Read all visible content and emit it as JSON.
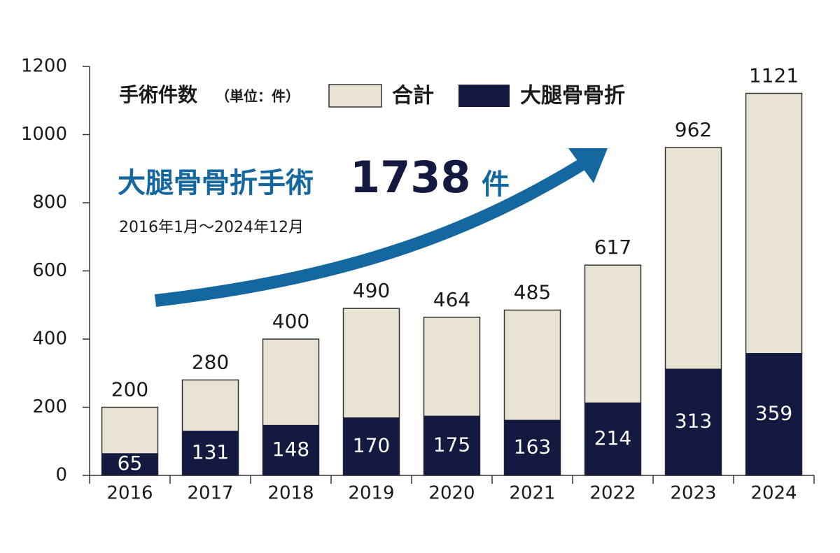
{
  "chart_data": {
    "type": "bar",
    "legend_title": "手術件数",
    "legend_unit": "（単位：件）",
    "annotation": {
      "label": "大腿骨骨折手術",
      "value": 1738,
      "unit": "件",
      "period": "2016年1月〜2024年12月"
    },
    "categories": [
      "2016",
      "2017",
      "2018",
      "2019",
      "2020",
      "2021",
      "2022",
      "2023",
      "2024"
    ],
    "series": [
      {
        "name": "合計",
        "color": "#e8e3d2",
        "values": [
          200,
          280,
          400,
          490,
          464,
          485,
          617,
          962,
          1121
        ]
      },
      {
        "name": "大腿骨骨折",
        "color": "#141a3f",
        "values": [
          65,
          131,
          148,
          170,
          175,
          163,
          214,
          313,
          359
        ]
      }
    ],
    "ylim": [
      0,
      1200
    ],
    "yticks": [
      0,
      200,
      400,
      600,
      800,
      1000,
      1200
    ],
    "grid": false
  }
}
